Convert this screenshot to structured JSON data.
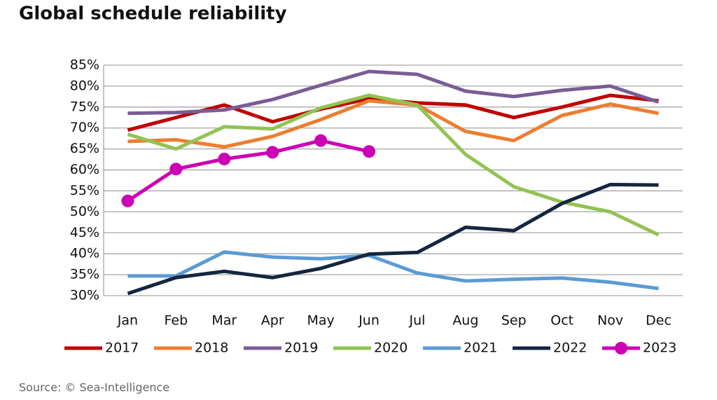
{
  "chart_data": {
    "type": "line",
    "title": "Global schedule reliability",
    "source": "Source: © Sea-Intelligence",
    "categories": [
      "Jan",
      "Feb",
      "Mar",
      "Apr",
      "May",
      "Jun",
      "Jul",
      "Aug",
      "Sep",
      "Oct",
      "Nov",
      "Dec"
    ],
    "ylim": [
      30,
      85
    ],
    "yticks": [
      {
        "value": 30,
        "label": "30%"
      },
      {
        "value": 35,
        "label": "35%"
      },
      {
        "value": 40,
        "label": "40%"
      },
      {
        "value": 45,
        "label": "45%"
      },
      {
        "value": 50,
        "label": "50%"
      },
      {
        "value": 55,
        "label": "55%"
      },
      {
        "value": 60,
        "label": "60%"
      },
      {
        "value": 65,
        "label": "65%"
      },
      {
        "value": 70,
        "label": "70%"
      },
      {
        "value": 75,
        "label": "75%"
      },
      {
        "value": 80,
        "label": "80%"
      },
      {
        "value": 85,
        "label": "85%"
      }
    ],
    "grid": true,
    "legend": "bottom",
    "series": [
      {
        "name": "2017",
        "color": "#c00000",
        "values": [
          69.5,
          72.5,
          75.5,
          71.5,
          74.5,
          77,
          76,
          75.5,
          72.5,
          75,
          77.8,
          76.5
        ]
      },
      {
        "name": "2018",
        "color": "#ed7d31",
        "values": [
          66.8,
          67.2,
          65.5,
          68,
          72,
          76.5,
          75.5,
          69.2,
          67,
          73,
          75.7,
          73.5
        ]
      },
      {
        "name": "2019",
        "color": "#7a5c96",
        "values": [
          73.5,
          73.7,
          74.3,
          76.8,
          80.2,
          83.5,
          82.8,
          78.8,
          77.5,
          79,
          80,
          76.2
        ]
      },
      {
        "name": "2020",
        "color": "#92c353",
        "values": [
          68.5,
          65,
          70.3,
          69.8,
          74.8,
          77.8,
          75.5,
          63.7,
          56,
          52.3,
          50,
          44.5
        ]
      },
      {
        "name": "2021",
        "color": "#5b9bd5",
        "values": [
          34.7,
          34.7,
          40.4,
          39.2,
          38.8,
          39.6,
          35.4,
          33.5,
          33.9,
          34.2,
          33.2,
          31.7
        ]
      },
      {
        "name": "2022",
        "color": "#15263f",
        "values": [
          30.5,
          34.3,
          35.8,
          34.3,
          36.5,
          39.9,
          40.3,
          46.3,
          45.5,
          52,
          56.5,
          56.4
        ]
      },
      {
        "name": "2023",
        "color": "#cc00b4",
        "marker": true,
        "values": [
          52.6,
          60.2,
          62.6,
          64.2,
          67,
          64.4,
          null,
          null,
          null,
          null,
          null,
          null
        ]
      }
    ]
  }
}
